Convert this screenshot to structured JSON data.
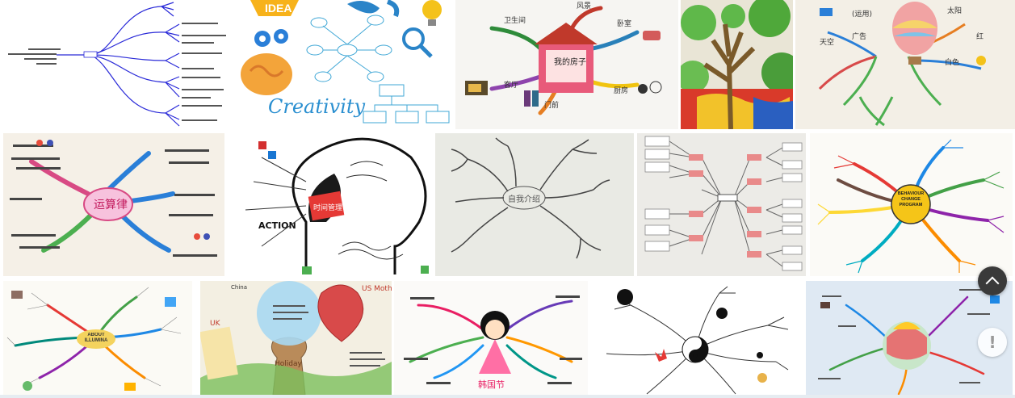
{
  "gallery": {
    "rows": [
      [
        {
          "id": "r1-tree-chart",
          "kind": "tree-chart"
        },
        {
          "id": "r1-creativity",
          "kind": "illustration",
          "labels": {
            "idea": "IDEA",
            "creativity": "Creativity"
          }
        },
        {
          "id": "r1-house",
          "kind": "handdrawn",
          "labels": {
            "center": "我的房子",
            "top": "风景",
            "left": "卫生间",
            "right": "卧室",
            "bl": "客厅",
            "bm": "门前",
            "br": "厨房"
          }
        },
        {
          "id": "r1-painted-tree",
          "kind": "painting"
        },
        {
          "id": "r1-balloon",
          "kind": "handdrawn",
          "labels": {
            "a": "(运用)",
            "b": "广告",
            "c": "太阳",
            "d": "红",
            "e": "白色",
            "f": "天空"
          }
        }
      ],
      [
        {
          "id": "r2-math",
          "kind": "handdrawn",
          "labels": {
            "center": "运算律"
          }
        },
        {
          "id": "r2-brain",
          "kind": "handdrawn",
          "labels": {
            "center": "时间管理",
            "action": "ACTION"
          }
        },
        {
          "id": "r2-sketch",
          "kind": "sketch",
          "labels": {
            "center": "自我介绍"
          }
        },
        {
          "id": "r2-flowchart",
          "kind": "chart"
        },
        {
          "id": "r2-behaviour",
          "kind": "illustration",
          "labels": {
            "center": "BEHAVIOUR CHANGE PROGRAM"
          }
        }
      ],
      [
        {
          "id": "r3-illumination",
          "kind": "illustration",
          "labels": {
            "center": "ABOUT ILLUMINA"
          }
        },
        {
          "id": "r3-mothers-day",
          "kind": "handdrawn",
          "labels": {
            "us": "US Mother's Day",
            "uk": "UK",
            "china": "China",
            "center": "Holiday"
          }
        },
        {
          "id": "r3-girl",
          "kind": "handdrawn",
          "labels": {
            "center": "韩国节"
          }
        },
        {
          "id": "r3-yinyang",
          "kind": "sketch"
        },
        {
          "id": "r3-balloon",
          "kind": "handdrawn"
        }
      ]
    ]
  },
  "controls": {
    "scroll_top_glyph": "⌃",
    "feedback_glyph": "!"
  },
  "colors": {
    "fab_dark": "#3a3a3a",
    "strip": "#e6ecf1"
  }
}
